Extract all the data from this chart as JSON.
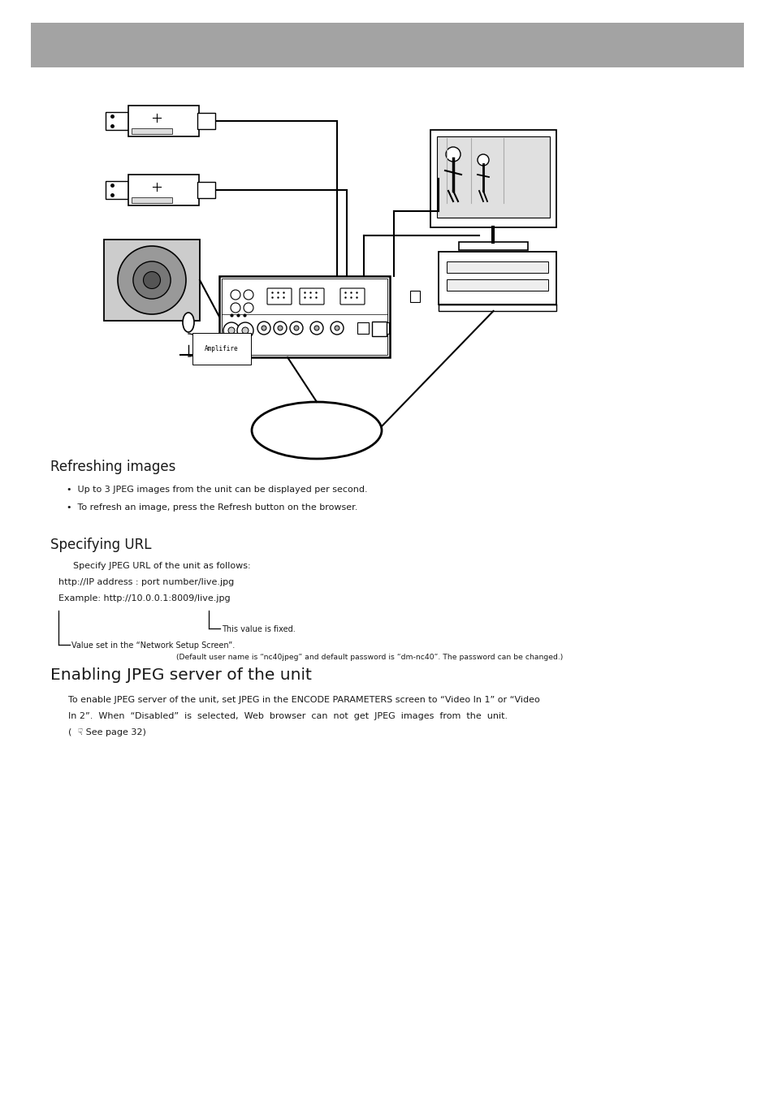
{
  "header_color": "#a3a3a3",
  "bg_color": "#ffffff",
  "text_color": "#1a1a1a",
  "title_fontsize": 12.0,
  "body_fontsize": 8.0,
  "small_fontsize": 7.0,
  "section1_title": "Refreshing images",
  "section1_bullet1": "•  Up to 3 JPEG images from the unit can be displayed per second.",
  "section1_bullet2": "•  To refresh an image, press the Refresh button on the browser.",
  "section2_title": "Specifying URL",
  "section2_line1": "Specify JPEG URL of the unit as follows:",
  "section2_line2": "http://IP address : port number/live.jpg",
  "section2_line3": "Example: http://10.0.0.1:8009/live.jpg",
  "section2_note_fixed": "This value is fixed.",
  "section2_note2": "Value set in the “Network Setup Screen”.",
  "section2_note3": "(Default user name is “nc40jpeg” and default password is “dm-nc40”. The password can be changed.)",
  "section3_title": "Enabling JPEG server of the unit",
  "section3_line1": "To enable JPEG server of the unit, set JPEG in the ENCODE PARAMETERS screen to “Video In 1” or “Video",
  "section3_line2": "In 2”.  When  “Disabled”  is  selected,  Web  browser  can  not  get  JPEG  images  from  the  unit.",
  "section3_line3": "(  ☟ See page 32)"
}
